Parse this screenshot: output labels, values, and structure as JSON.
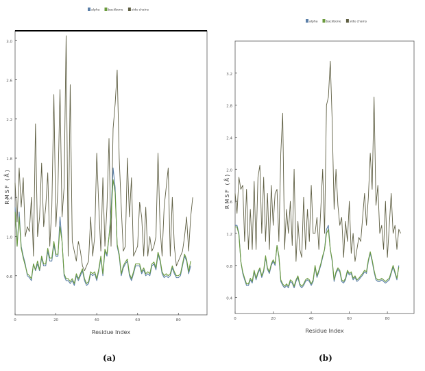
{
  "panels": [
    {
      "caption": "(a)",
      "chart_data": {
        "type": "line",
        "xlabel": "Residue Index",
        "ylabel": "RMSF (Å)",
        "xlim": [
          0,
          94
        ],
        "ylim": [
          0.2,
          3.1
        ],
        "xticks": [
          0,
          20,
          40,
          60,
          80
        ],
        "yticks": [
          0.6,
          1.0,
          1.4,
          1.8,
          2.2,
          2.6,
          3.0
        ],
        "ytick_labels": [
          "0.6",
          "1.0",
          "1.4",
          "1.8",
          "2.2",
          "2.6",
          "3.0"
        ],
        "legend_position": "top-center",
        "series": [
          {
            "name": "alpha",
            "color": "#5b7fa8",
            "values": [
              1.3,
              0.9,
              1.25,
              0.9,
              0.8,
              0.72,
              0.6,
              0.58,
              0.55,
              0.72,
              0.65,
              0.72,
              0.65,
              0.78,
              0.7,
              0.7,
              0.85,
              0.75,
              0.75,
              0.92,
              0.8,
              0.8,
              1.2,
              0.95,
              0.6,
              0.55,
              0.55,
              0.52,
              0.55,
              0.5,
              0.6,
              0.55,
              0.6,
              0.65,
              0.55,
              0.5,
              0.52,
              0.62,
              0.6,
              0.62,
              0.55,
              0.65,
              0.78,
              0.6,
              0.85,
              0.8,
              1.0,
              1.25,
              1.7,
              1.5,
              0.9,
              0.8,
              0.6,
              0.68,
              0.72,
              0.75,
              0.6,
              0.55,
              0.62,
              0.7,
              0.7,
              0.7,
              0.62,
              0.66,
              0.6,
              0.62,
              0.6,
              0.7,
              0.72,
              0.66,
              0.82,
              0.75,
              0.62,
              0.58,
              0.6,
              0.58,
              0.6,
              0.68,
              0.62,
              0.58,
              0.58,
              0.6,
              0.7,
              0.8,
              0.75,
              0.62,
              0.7
            ]
          },
          {
            "name": "backbone",
            "color": "#6a9a3c",
            "values": [
              1.25,
              0.9,
              1.2,
              0.88,
              0.78,
              0.7,
              0.62,
              0.6,
              0.57,
              0.72,
              0.66,
              0.75,
              0.66,
              0.8,
              0.72,
              0.72,
              0.88,
              0.78,
              0.78,
              0.95,
              0.82,
              0.82,
              1.1,
              0.95,
              0.62,
              0.57,
              0.57,
              0.54,
              0.57,
              0.52,
              0.62,
              0.57,
              0.62,
              0.67,
              0.57,
              0.52,
              0.54,
              0.64,
              0.62,
              0.64,
              0.57,
              0.67,
              0.8,
              0.62,
              0.87,
              0.82,
              1.0,
              1.2,
              1.58,
              1.45,
              0.92,
              0.82,
              0.62,
              0.7,
              0.74,
              0.77,
              0.62,
              0.57,
              0.64,
              0.72,
              0.72,
              0.72,
              0.64,
              0.68,
              0.62,
              0.64,
              0.62,
              0.72,
              0.74,
              0.68,
              0.84,
              0.77,
              0.64,
              0.6,
              0.62,
              0.6,
              0.62,
              0.7,
              0.64,
              0.6,
              0.6,
              0.62,
              0.72,
              0.82,
              0.77,
              0.64,
              0.75
            ]
          },
          {
            "name": "side chains",
            "color": "#5e5e42",
            "values": [
              1.55,
              1.15,
              1.7,
              1.3,
              1.6,
              1.0,
              1.1,
              1.05,
              1.4,
              0.8,
              2.15,
              1.0,
              1.2,
              1.75,
              1.1,
              1.3,
              1.65,
              0.9,
              1.3,
              2.45,
              1.1,
              1.5,
              2.5,
              1.2,
              1.5,
              3.05,
              0.8,
              2.55,
              0.95,
              0.85,
              0.75,
              0.95,
              0.85,
              0.7,
              0.65,
              0.7,
              0.75,
              1.2,
              0.8,
              1.0,
              1.85,
              1.3,
              0.85,
              1.6,
              0.9,
              1.3,
              2.0,
              0.9,
              2.1,
              2.35,
              2.7,
              1.8,
              1.3,
              0.85,
              0.9,
              1.8,
              1.2,
              1.6,
              0.8,
              0.85,
              0.9,
              1.35,
              1.2,
              0.8,
              1.3,
              0.8,
              1.0,
              0.85,
              0.9,
              1.0,
              1.85,
              1.1,
              0.8,
              1.3,
              1.5,
              1.7,
              0.8,
              1.4,
              0.9,
              0.7,
              0.75,
              0.8,
              0.85,
              1.0,
              1.2,
              0.85,
              1.2,
              1.4
            ]
          }
        ]
      }
    },
    {
      "caption": "(b)",
      "chart_data": {
        "type": "line",
        "xlabel": "Residue Index",
        "ylabel": "RMSF (Å)",
        "xlim": [
          0,
          94
        ],
        "ylim": [
          0.2,
          3.6
        ],
        "xticks": [
          0,
          20,
          40,
          60,
          80
        ],
        "yticks": [
          0.4,
          0.8,
          1.2,
          1.6,
          2.0,
          2.4,
          2.8,
          3.2
        ],
        "ytick_labels": [
          "0.4",
          "0.8",
          "1.2",
          "1.6",
          "2.0",
          "2.4",
          "2.8",
          "3.2"
        ],
        "legend_position": "top-center",
        "series": [
          {
            "name": "alpha",
            "color": "#5b7fa8",
            "values": [
              1.3,
              1.3,
              1.2,
              0.85,
              0.7,
              0.62,
              0.55,
              0.55,
              0.62,
              0.58,
              0.72,
              0.62,
              0.7,
              0.75,
              0.65,
              0.72,
              0.9,
              0.75,
              0.7,
              0.8,
              0.85,
              0.8,
              1.05,
              0.9,
              0.6,
              0.55,
              0.52,
              0.55,
              0.52,
              0.6,
              0.58,
              0.52,
              0.6,
              0.65,
              0.55,
              0.52,
              0.55,
              0.6,
              0.62,
              0.6,
              0.55,
              0.6,
              0.78,
              0.65,
              0.72,
              0.8,
              0.9,
              1.0,
              1.25,
              1.3,
              1.0,
              0.85,
              0.6,
              0.7,
              0.75,
              0.72,
              0.6,
              0.58,
              0.62,
              0.72,
              0.68,
              0.7,
              0.62,
              0.65,
              0.6,
              0.62,
              0.65,
              0.68,
              0.72,
              0.7,
              0.85,
              0.95,
              0.85,
              0.72,
              0.62,
              0.6,
              0.6,
              0.62,
              0.6,
              0.58,
              0.6,
              0.62,
              0.7,
              0.78,
              0.7,
              0.62,
              0.8
            ]
          },
          {
            "name": "backbone",
            "color": "#6a9a3c",
            "values": [
              1.28,
              1.28,
              1.18,
              0.85,
              0.72,
              0.64,
              0.57,
              0.57,
              0.64,
              0.6,
              0.74,
              0.64,
              0.72,
              0.77,
              0.67,
              0.74,
              0.92,
              0.77,
              0.72,
              0.82,
              0.87,
              0.82,
              1.05,
              0.92,
              0.62,
              0.57,
              0.54,
              0.57,
              0.54,
              0.62,
              0.6,
              0.54,
              0.62,
              0.67,
              0.57,
              0.54,
              0.57,
              0.62,
              0.64,
              0.62,
              0.57,
              0.62,
              0.8,
              0.67,
              0.74,
              0.82,
              0.92,
              1.0,
              1.2,
              1.25,
              1.0,
              0.87,
              0.62,
              0.72,
              0.77,
              0.74,
              0.62,
              0.6,
              0.64,
              0.74,
              0.7,
              0.72,
              0.64,
              0.67,
              0.62,
              0.64,
              0.67,
              0.7,
              0.74,
              0.72,
              0.87,
              0.97,
              0.87,
              0.74,
              0.64,
              0.62,
              0.62,
              0.64,
              0.62,
              0.6,
              0.62,
              0.64,
              0.72,
              0.8,
              0.72,
              0.64,
              0.78
            ]
          },
          {
            "name": "side chains",
            "color": "#5e5e42",
            "values": [
              1.7,
              1.45,
              1.9,
              1.75,
              1.8,
              1.1,
              1.75,
              1.0,
              1.5,
              1.0,
              1.85,
              1.0,
              1.9,
              2.05,
              1.2,
              1.9,
              1.1,
              1.7,
              1.0,
              1.8,
              1.3,
              1.7,
              1.75,
              1.1,
              2.2,
              2.7,
              1.0,
              1.5,
              1.2,
              1.6,
              1.05,
              2.0,
              0.85,
              1.35,
              1.0,
              0.9,
              1.65,
              1.0,
              1.5,
              1.1,
              1.8,
              1.2,
              1.2,
              1.4,
              1.0,
              1.5,
              2.0,
              1.2,
              2.8,
              2.9,
              3.35,
              2.6,
              1.5,
              2.0,
              1.55,
              1.3,
              1.4,
              0.9,
              1.35,
              1.1,
              1.6,
              0.95,
              1.2,
              0.85,
              1.0,
              1.15,
              1.1,
              1.4,
              1.7,
              1.3,
              1.65,
              2.2,
              1.75,
              2.9,
              1.55,
              1.8,
              1.2,
              1.3,
              1.0,
              1.6,
              0.9,
              1.3,
              1.7,
              1.2,
              1.3,
              1.0,
              1.25,
              1.2
            ]
          }
        ]
      }
    }
  ]
}
